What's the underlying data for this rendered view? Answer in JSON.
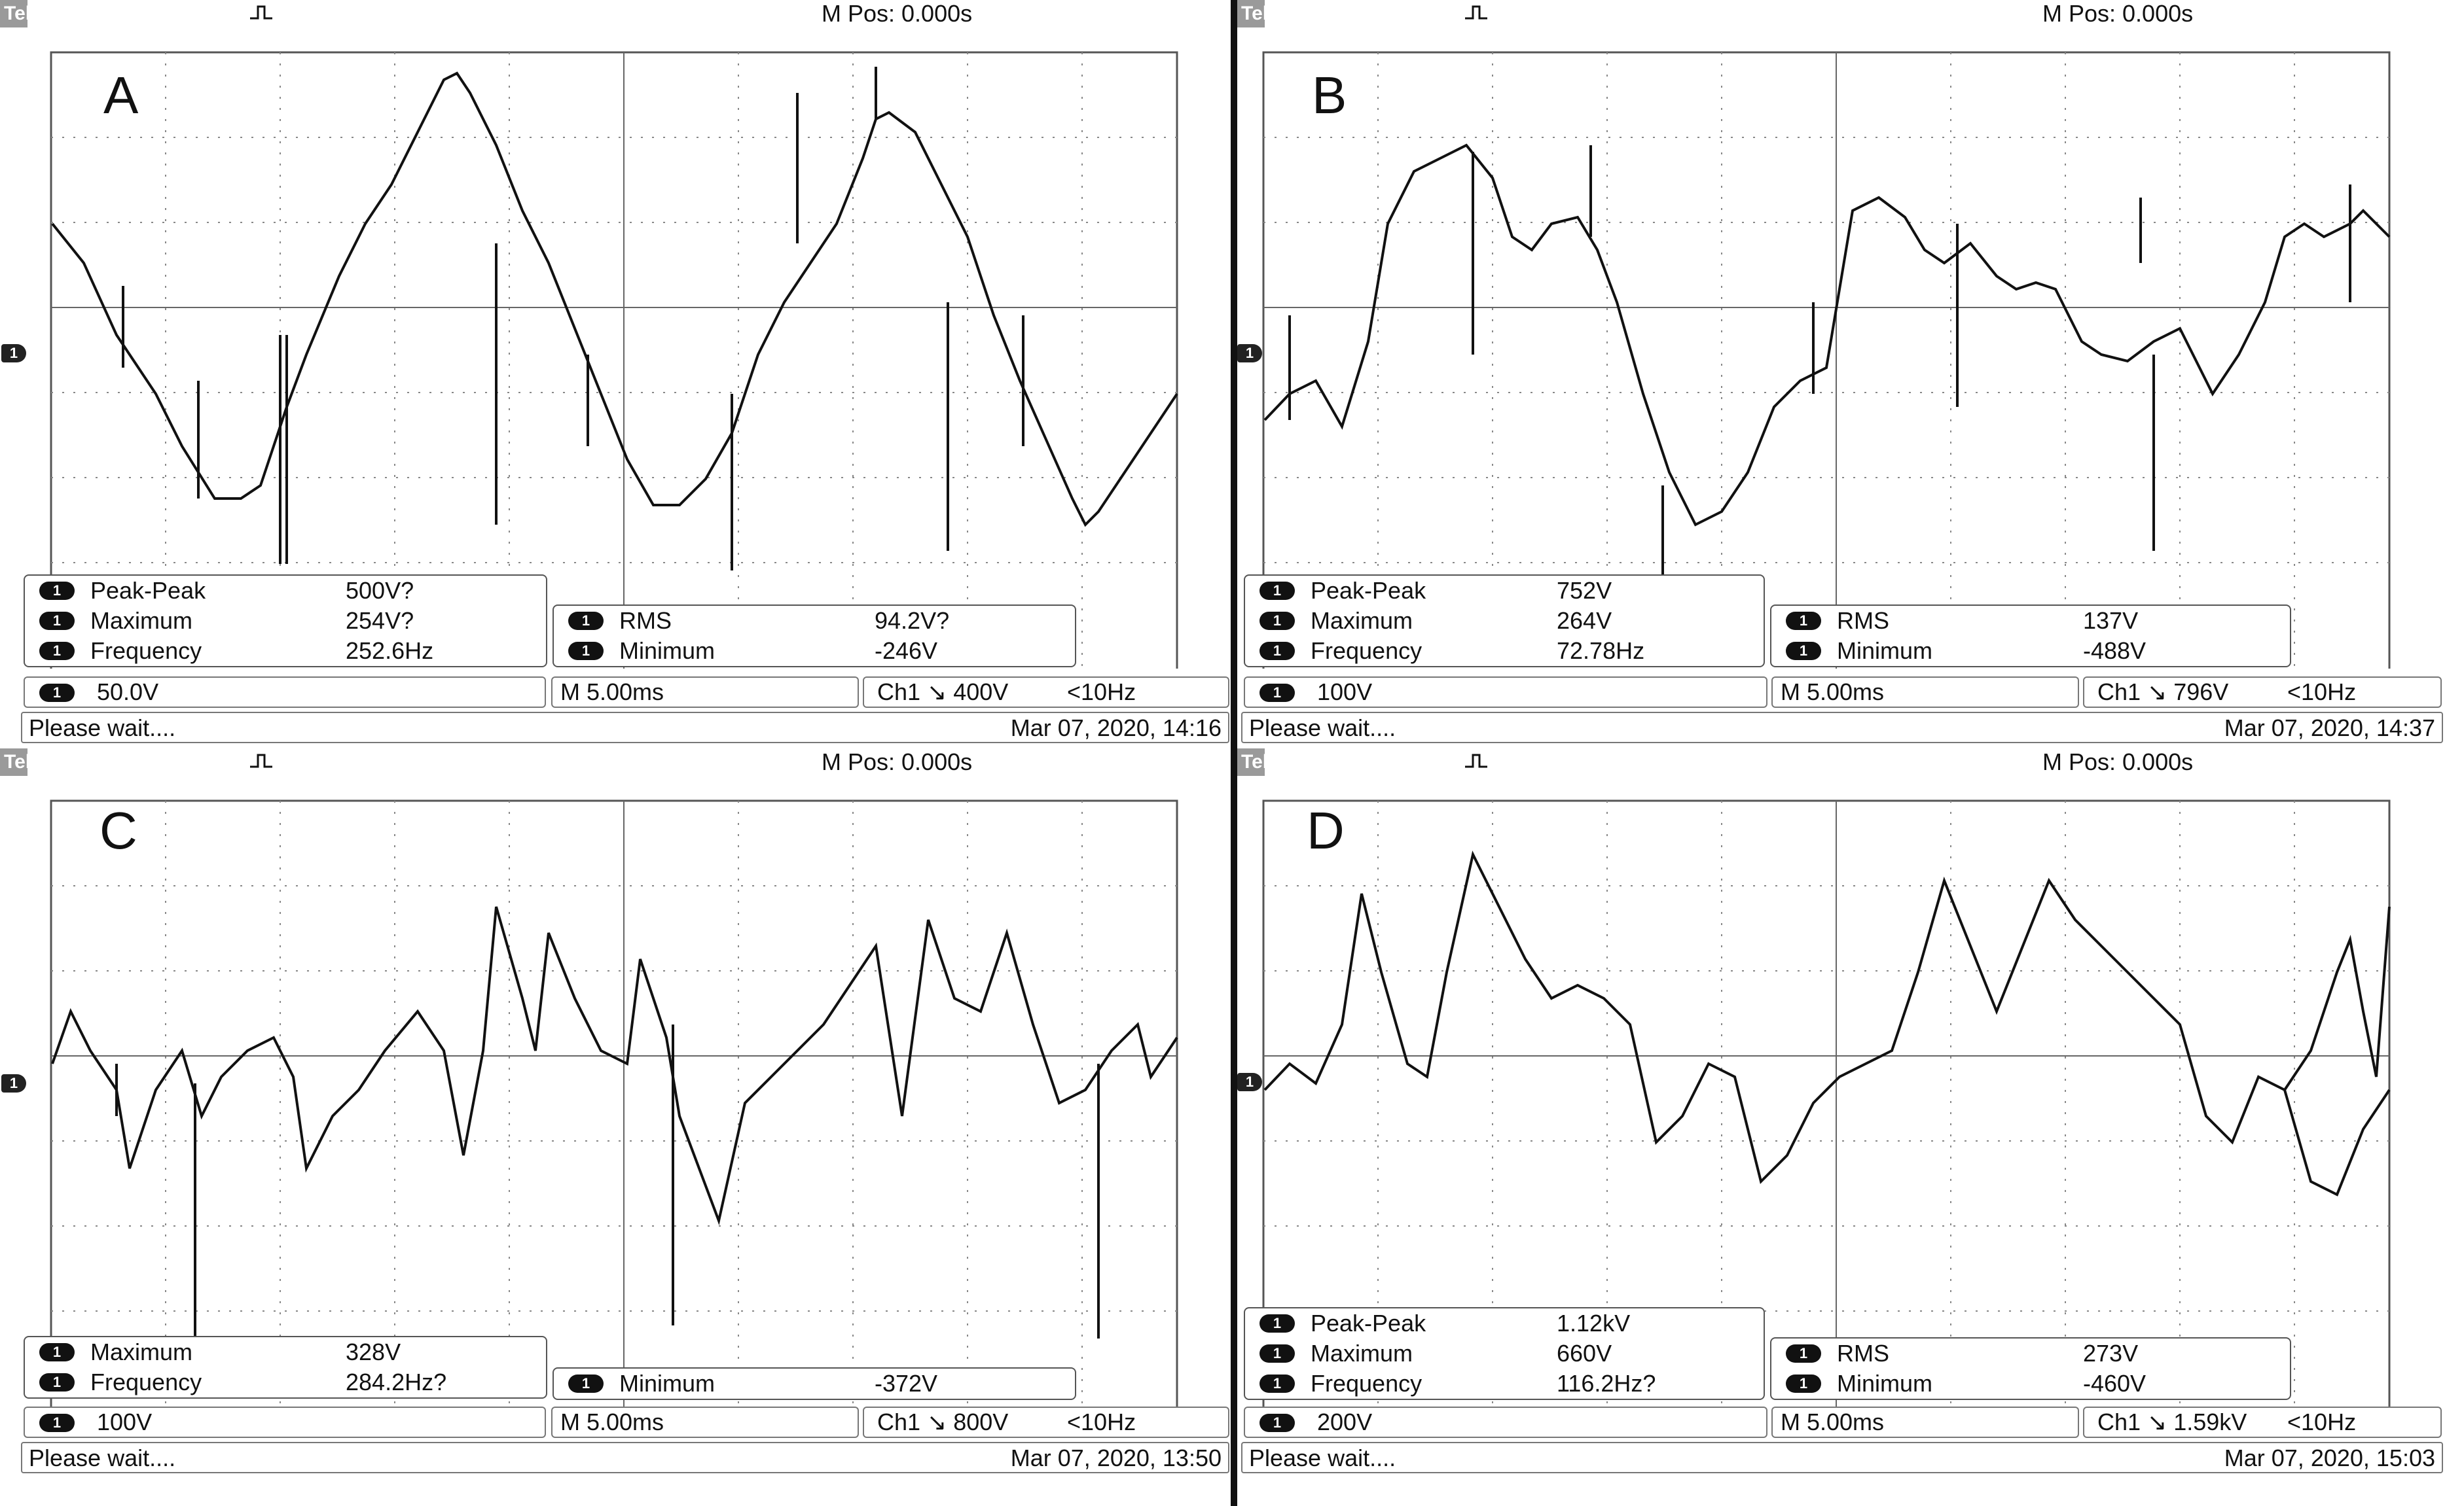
{
  "screens": [
    {
      "id": "A",
      "letter": "A",
      "tek": "Tek",
      "mpos": "M Pos: 0.000s",
      "channel_marker": "1",
      "measurements_left": [
        {
          "pill": "1",
          "name": "Peak-Peak",
          "value": "500V?"
        },
        {
          "pill": "1",
          "name": "Maximum",
          "value": "254V?"
        },
        {
          "pill": "1",
          "name": "Frequency",
          "value": "252.6Hz"
        }
      ],
      "measurements_right": [
        {
          "pill": "1",
          "name": "RMS",
          "value": "94.2V?"
        },
        {
          "pill": "1",
          "name": "Minimum",
          "value": "-246V"
        }
      ],
      "status": {
        "ch_pill": "1",
        "volts": "50.0V",
        "time": "M 5.00ms",
        "trigger": "Ch1 ↘ 400V",
        "freq": "<10Hz"
      },
      "bottom": {
        "message": "Please wait....",
        "datetime": "Mar 07, 2020, 14:16"
      }
    },
    {
      "id": "B",
      "letter": "B",
      "tek": "Tek",
      "mpos": "M Pos: 0.000s",
      "channel_marker": "1",
      "measurements_left": [
        {
          "pill": "1",
          "name": "Peak-Peak",
          "value": "752V"
        },
        {
          "pill": "1",
          "name": "Maximum",
          "value": "264V"
        },
        {
          "pill": "1",
          "name": "Frequency",
          "value": "72.78Hz"
        }
      ],
      "measurements_right": [
        {
          "pill": "1",
          "name": "RMS",
          "value": "137V"
        },
        {
          "pill": "1",
          "name": "Minimum",
          "value": "-488V"
        }
      ],
      "status": {
        "ch_pill": "1",
        "volts": "100V",
        "time": "M 5.00ms",
        "trigger": "Ch1 ↘ 796V",
        "freq": "<10Hz"
      },
      "bottom": {
        "message": "Please wait....",
        "datetime": "Mar 07, 2020, 14:37"
      }
    },
    {
      "id": "C",
      "letter": "C",
      "tek": "Tek",
      "mpos": "M Pos: 0.000s",
      "channel_marker": "1",
      "measurements_left": [
        {
          "pill": "1",
          "name": "Maximum",
          "value": "328V"
        },
        {
          "pill": "1",
          "name": "Frequency",
          "value": "284.2Hz?"
        }
      ],
      "measurements_right": [
        {
          "pill": "1",
          "name": "Minimum",
          "value": "-372V"
        }
      ],
      "status": {
        "ch_pill": "1",
        "volts": "100V",
        "time": "M 5.00ms",
        "trigger": "Ch1 ↘ 800V",
        "freq": "<10Hz"
      },
      "bottom": {
        "message": "Please wait....",
        "datetime": "Mar 07, 2020, 13:50"
      }
    },
    {
      "id": "D",
      "letter": "D",
      "tek": "Tek",
      "mpos": "M Pos: 0.000s",
      "channel_marker": "1",
      "measurements_left": [
        {
          "pill": "1",
          "name": "Peak-Peak",
          "value": "1.12kV"
        },
        {
          "pill": "1",
          "name": "Maximum",
          "value": "660V"
        },
        {
          "pill": "1",
          "name": "Frequency",
          "value": "116.2Hz?"
        }
      ],
      "measurements_right": [
        {
          "pill": "1",
          "name": "RMS",
          "value": "273V"
        },
        {
          "pill": "1",
          "name": "Minimum",
          "value": "-460V"
        }
      ],
      "status": {
        "ch_pill": "1",
        "volts": "200V",
        "time": "M 5.00ms",
        "trigger": "Ch1 ↘ 1.59kV",
        "freq": "<10Hz"
      },
      "bottom": {
        "message": "Please wait....",
        "datetime": "Mar 07, 2020, 15:03"
      }
    }
  ]
}
